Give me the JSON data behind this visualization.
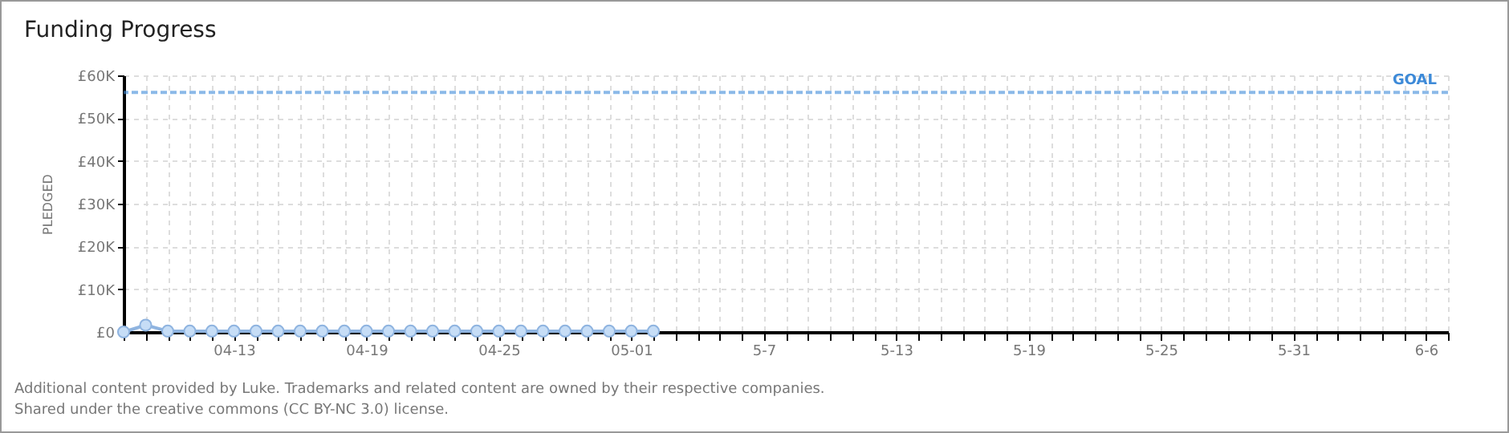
{
  "chart_data": {
    "type": "line",
    "title": "Funding Progress",
    "ylabel": "PLEDGED",
    "x": [
      "--04-08",
      "--04-09",
      "--04-10",
      "--04-11",
      "--04-12",
      "--04-13",
      "--04-14",
      "--04-15",
      "--04-16",
      "--04-17",
      "--04-18",
      "--04-19",
      "--04-20",
      "--04-21",
      "--04-22",
      "--04-23",
      "--04-24",
      "--04-25",
      "--04-26",
      "--04-27",
      "--04-28",
      "--04-29",
      "--04-30",
      "--05-01",
      "--05-02"
    ],
    "series": [
      {
        "color": "#8fb4e0",
        "values": [
          0,
          1600,
          200,
          200,
          200,
          200,
          200,
          200,
          200,
          200,
          200,
          200,
          200,
          200,
          200,
          200,
          200,
          200,
          200,
          200,
          200,
          200,
          200,
          200,
          200
        ]
      }
    ],
    "xlim": [
      "--04-08",
      "--06-07"
    ],
    "xticks": [
      {
        "value": "--04-08",
        "label": null
      },
      {
        "value": "--04-09",
        "label": null
      },
      {
        "value": "--04-10",
        "label": null
      },
      {
        "value": "--04-11",
        "label": null
      },
      {
        "value": "--04-12",
        "label": null
      },
      {
        "value": "--04-13",
        "label": "04-13"
      },
      {
        "value": "--04-14",
        "label": null
      },
      {
        "value": "--04-15",
        "label": null
      },
      {
        "value": "--04-16",
        "label": null
      },
      {
        "value": "--04-17",
        "label": null
      },
      {
        "value": "--04-18",
        "label": null
      },
      {
        "value": "--04-19",
        "label": "04-19"
      },
      {
        "value": "--04-20",
        "label": null
      },
      {
        "value": "--04-21",
        "label": null
      },
      {
        "value": "--04-22",
        "label": null
      },
      {
        "value": "--04-23",
        "label": null
      },
      {
        "value": "--04-24",
        "label": null
      },
      {
        "value": "--04-25",
        "label": "04-25"
      },
      {
        "value": "--04-26",
        "label": null
      },
      {
        "value": "--04-27",
        "label": null
      },
      {
        "value": "--04-28",
        "label": null
      },
      {
        "value": "--04-29",
        "label": null
      },
      {
        "value": "--04-30",
        "label": null
      },
      {
        "value": "--05-01",
        "label": "05-01"
      },
      {
        "value": "--05-02",
        "label": null
      },
      {
        "value": "--05-03",
        "label": null
      },
      {
        "value": "--05-04",
        "label": null
      },
      {
        "value": "--05-05",
        "label": null
      },
      {
        "value": "--05-06",
        "label": null
      },
      {
        "value": "--05-07",
        "label": "5-7"
      },
      {
        "value": "--05-08",
        "label": null
      },
      {
        "value": "--05-09",
        "label": null
      },
      {
        "value": "--05-10",
        "label": null
      },
      {
        "value": "--05-11",
        "label": null
      },
      {
        "value": "--05-12",
        "label": null
      },
      {
        "value": "--05-13",
        "label": "5-13"
      },
      {
        "value": "--05-14",
        "label": null
      },
      {
        "value": "--05-15",
        "label": null
      },
      {
        "value": "--05-16",
        "label": null
      },
      {
        "value": "--05-17",
        "label": null
      },
      {
        "value": "--05-18",
        "label": null
      },
      {
        "value": "--05-19",
        "label": "5-19"
      },
      {
        "value": "--05-20",
        "label": null
      },
      {
        "value": "--05-21",
        "label": null
      },
      {
        "value": "--05-22",
        "label": null
      },
      {
        "value": "--05-23",
        "label": null
      },
      {
        "value": "--05-24",
        "label": null
      },
      {
        "value": "--05-25",
        "label": "5-25"
      },
      {
        "value": "--05-26",
        "label": null
      },
      {
        "value": "--05-27",
        "label": null
      },
      {
        "value": "--05-28",
        "label": null
      },
      {
        "value": "--05-29",
        "label": null
      },
      {
        "value": "--05-30",
        "label": null
      },
      {
        "value": "--05-31",
        "label": "5-31"
      },
      {
        "value": "--06-01",
        "label": null
      },
      {
        "value": "--06-02",
        "label": null
      },
      {
        "value": "--06-03",
        "label": null
      },
      {
        "value": "--06-04",
        "label": null
      },
      {
        "value": "--06-05",
        "label": null
      },
      {
        "value": "--06-06",
        "label": "6-6"
      },
      {
        "value": "--06-07",
        "label": null
      }
    ],
    "ylim": [
      0,
      60000
    ],
    "yticks": [
      {
        "value": 0,
        "label": "£0"
      },
      {
        "value": 10000,
        "label": "£10K"
      },
      {
        "value": 20000,
        "label": "£20K"
      },
      {
        "value": 30000,
        "label": "£30K"
      },
      {
        "value": 40000,
        "label": "£40K"
      },
      {
        "value": 50000,
        "label": "£50K"
      },
      {
        "value": 60000,
        "label": "£60K"
      }
    ],
    "ref_lines": [
      {
        "axis": "y",
        "value": 56000,
        "label": "GOAL",
        "color": "#3d8ad8",
        "line_style": "dashed"
      }
    ],
    "grid": true,
    "marker": "circle",
    "annotations": [
      "Additional content provided by Luke. Trademarks and related content are owned by their respective companies.",
      "Shared under the creative commons (CC BY-NC 3.0) license."
    ]
  }
}
